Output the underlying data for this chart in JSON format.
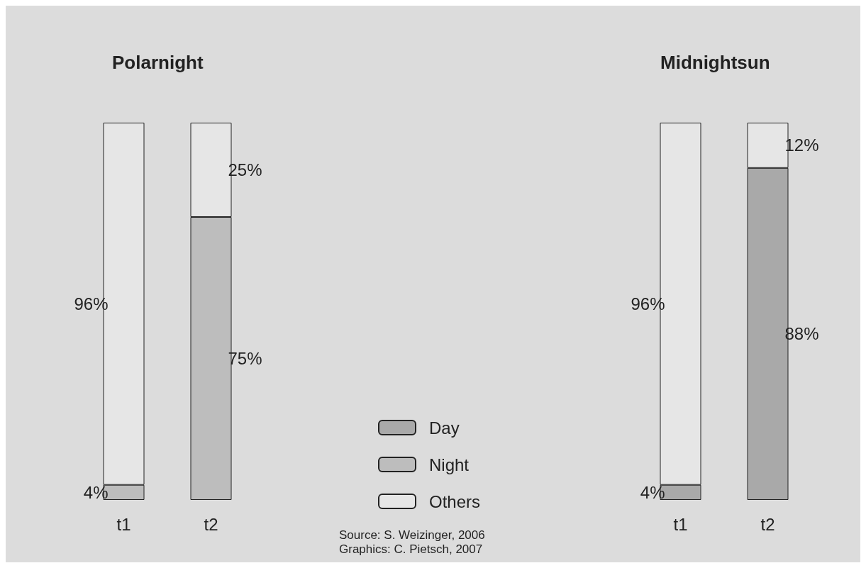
{
  "chart_data": [
    {
      "type": "bar",
      "title": "Polarnight",
      "stacked": true,
      "categories": [
        "t1",
        "t2"
      ],
      "legend": "right",
      "annotations": [
        "Source: S. Weizinger, 2006",
        "Graphics: C. Pietsch, 2007"
      ],
      "series": [
        {
          "name": "Day",
          "color": "#a9a9a9",
          "values": [
            null,
            null
          ],
          "value_labels": [
            null,
            null
          ]
        },
        {
          "name": "Night",
          "color": "#bdbdbd",
          "values": [
            4,
            75
          ],
          "value_labels": [
            "4%",
            "75%"
          ]
        },
        {
          "name": "Others",
          "color": "#e6e6e6",
          "values": [
            96,
            25
          ],
          "value_labels": [
            "96%",
            "25%"
          ]
        }
      ]
    },
    {
      "type": "bar",
      "title": "Midnightsun",
      "stacked": true,
      "categories": [
        "t1",
        "t2"
      ],
      "series": [
        {
          "color": "#a9a9a9",
          "values": [
            4,
            88
          ],
          "value_labels": [
            "4%",
            "88%"
          ]
        },
        {
          "color": "#bdbdbd",
          "values": [
            null,
            null
          ],
          "value_labels": [
            null,
            null
          ]
        },
        {
          "color": "#e6e6e6",
          "values": [
            96,
            12
          ],
          "value_labels": [
            "96%",
            "12%"
          ]
        }
      ]
    }
  ]
}
